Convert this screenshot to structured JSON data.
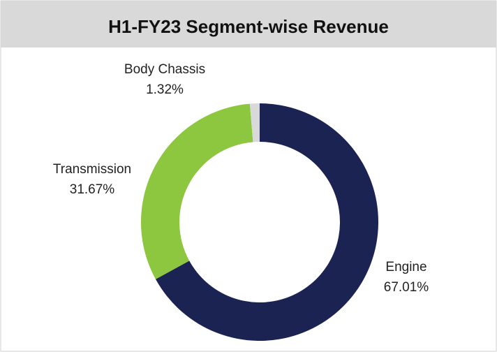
{
  "chart_data": {
    "type": "donut",
    "title": "H1-FY23 Segment-wise Revenue",
    "categories": [
      "Engine",
      "Transmission",
      "Body Chassis"
    ],
    "values": [
      67.01,
      31.67,
      1.32
    ],
    "value_labels": [
      "67.01%",
      "31.67%",
      "1.32%"
    ],
    "colors": [
      "#1a2352",
      "#8dc63f",
      "#d9d9d9"
    ]
  }
}
